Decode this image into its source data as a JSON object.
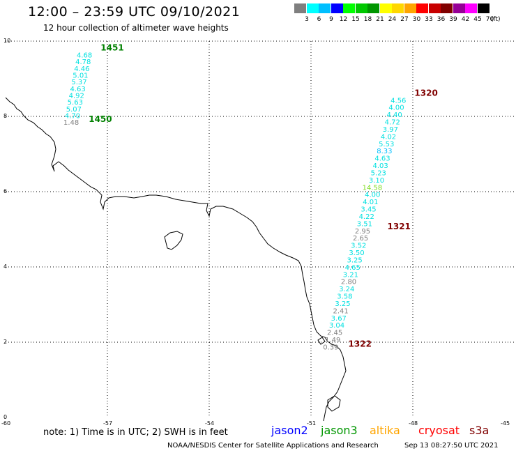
{
  "header": {
    "title": "12:00 – 23:59 UTC 09/10/2021",
    "subtitle": "12 hour collection of altimeter wave heights"
  },
  "color_scale": {
    "swatches": [
      {
        "label": "3",
        "color": "#7f7f7f"
      },
      {
        "label": "6",
        "color": "#00ffff"
      },
      {
        "label": "9",
        "color": "#00bfff"
      },
      {
        "label": "12",
        "color": "#0000ff"
      },
      {
        "label": "15",
        "color": "#00ff00"
      },
      {
        "label": "18",
        "color": "#00c800"
      },
      {
        "label": "21",
        "color": "#009600"
      },
      {
        "label": "24",
        "color": "#ffff00"
      },
      {
        "label": "27",
        "color": "#ffd700"
      },
      {
        "label": "30",
        "color": "#ffa500"
      },
      {
        "label": "33",
        "color": "#ff0000"
      },
      {
        "label": "36",
        "color": "#c80000"
      },
      {
        "label": "39",
        "color": "#800000"
      },
      {
        "label": "42",
        "color": "#960096"
      },
      {
        "label": "45",
        "color": "#ff00ff"
      },
      {
        "label": "70",
        "color": "#000000"
      }
    ],
    "unit": "(ft)"
  },
  "axes": {
    "lat_ticks": [
      "0",
      "2",
      "4",
      "6",
      "8",
      "10"
    ],
    "lon_ticks": [
      "-60",
      "-57",
      "-54",
      "-51",
      "-48",
      "-45"
    ],
    "lat_range": [
      0,
      10
    ],
    "lon_range": [
      -60,
      -45
    ]
  },
  "tracks": [
    {
      "id": "pass-west",
      "times": [
        {
          "label": "1451",
          "lat": 9.75,
          "lon": -57.2
        },
        {
          "label": "1450",
          "lat": 7.85,
          "lon": -57.55
        }
      ],
      "time_color": "#008000",
      "heights": [
        {
          "v": "4.68",
          "c": "#00e0e0"
        },
        {
          "v": "4.78",
          "c": "#00e0e0"
        },
        {
          "v": "4.46",
          "c": "#00e0e0"
        },
        {
          "v": "5.01",
          "c": "#00e0e0"
        },
        {
          "v": "5.37",
          "c": "#00e0e0"
        },
        {
          "v": "4.63",
          "c": "#00e0e0"
        },
        {
          "v": "4.92",
          "c": "#00e0e0"
        },
        {
          "v": "5.63",
          "c": "#00e0e0"
        },
        {
          "v": "5.07",
          "c": "#00e0e0"
        },
        {
          "v": "4.70",
          "c": "#00e0e0"
        },
        {
          "v": "1.48",
          "c": "#7f7f7f"
        }
      ]
    },
    {
      "id": "pass-east",
      "times": [
        {
          "label": "1320",
          "lat": 8.55,
          "lon": -47.95
        },
        {
          "label": "1321",
          "lat": 5.0,
          "lon": -48.75
        },
        {
          "label": "1322",
          "lat": 1.88,
          "lon": -49.9
        }
      ],
      "time_color": "#800000",
      "heights": [
        {
          "v": "4.56",
          "c": "#00e0e0"
        },
        {
          "v": "4.00",
          "c": "#00e0e0"
        },
        {
          "v": "4.40",
          "c": "#00e0e0"
        },
        {
          "v": "4.72",
          "c": "#00e0e0"
        },
        {
          "v": "3.97",
          "c": "#00e0e0"
        },
        {
          "v": "4.02",
          "c": "#00e0e0"
        },
        {
          "v": "5.53",
          "c": "#00e0e0"
        },
        {
          "v": "8.33",
          "c": "#00bfff"
        },
        {
          "v": "4.63",
          "c": "#00e0e0"
        },
        {
          "v": "4.03",
          "c": "#00e0e0"
        },
        {
          "v": "5.23",
          "c": "#00e0e0"
        },
        {
          "v": "3.10",
          "c": "#00e0e0"
        },
        {
          "v": "14.58",
          "c": "#7ddc1f"
        },
        {
          "v": "4.00",
          "c": "#00e0e0"
        },
        {
          "v": "4.01",
          "c": "#00e0e0"
        },
        {
          "v": "3.45",
          "c": "#00e0e0"
        },
        {
          "v": "4.22",
          "c": "#00e0e0"
        },
        {
          "v": "3.51",
          "c": "#00e0e0"
        },
        {
          "v": "2.95",
          "c": "#7f7f7f"
        },
        {
          "v": "2.65",
          "c": "#7f7f7f"
        },
        {
          "v": "3.52",
          "c": "#00e0e0"
        },
        {
          "v": "3.50",
          "c": "#00e0e0"
        },
        {
          "v": "3.25",
          "c": "#00e0e0"
        },
        {
          "v": "4.65",
          "c": "#00e0e0"
        },
        {
          "v": "3.21",
          "c": "#00e0e0"
        },
        {
          "v": "2.80",
          "c": "#7f7f7f"
        },
        {
          "v": "3.24",
          "c": "#00e0e0"
        },
        {
          "v": "3.58",
          "c": "#00e0e0"
        },
        {
          "v": "3.25",
          "c": "#00e0e0"
        },
        {
          "v": "2.41",
          "c": "#7f7f7f"
        },
        {
          "v": "3.67",
          "c": "#00e0e0"
        },
        {
          "v": "3.04",
          "c": "#00e0e0"
        },
        {
          "v": "2.45",
          "c": "#7f7f7f"
        },
        {
          "v": "1.49",
          "c": "#7f7f7f"
        },
        {
          "v": "0.39",
          "c": "#7f7f7f"
        }
      ]
    }
  ],
  "footer": {
    "note": "note: 1) Time is in UTC; 2) SWH is in feet",
    "satellites": [
      {
        "name": "jason2",
        "color": "#0000ff"
      },
      {
        "name": "jason3",
        "color": "#009600"
      },
      {
        "name": "altika",
        "color": "#ffa500"
      },
      {
        "name": "cryosat",
        "color": "#ff0000"
      },
      {
        "name": "s3a",
        "color": "#800000"
      }
    ],
    "credit": "NOAA/NESDIS Center for Satellite Applications and Research",
    "timestamp": "Sep 13 08:27:50 UTC 2021"
  }
}
